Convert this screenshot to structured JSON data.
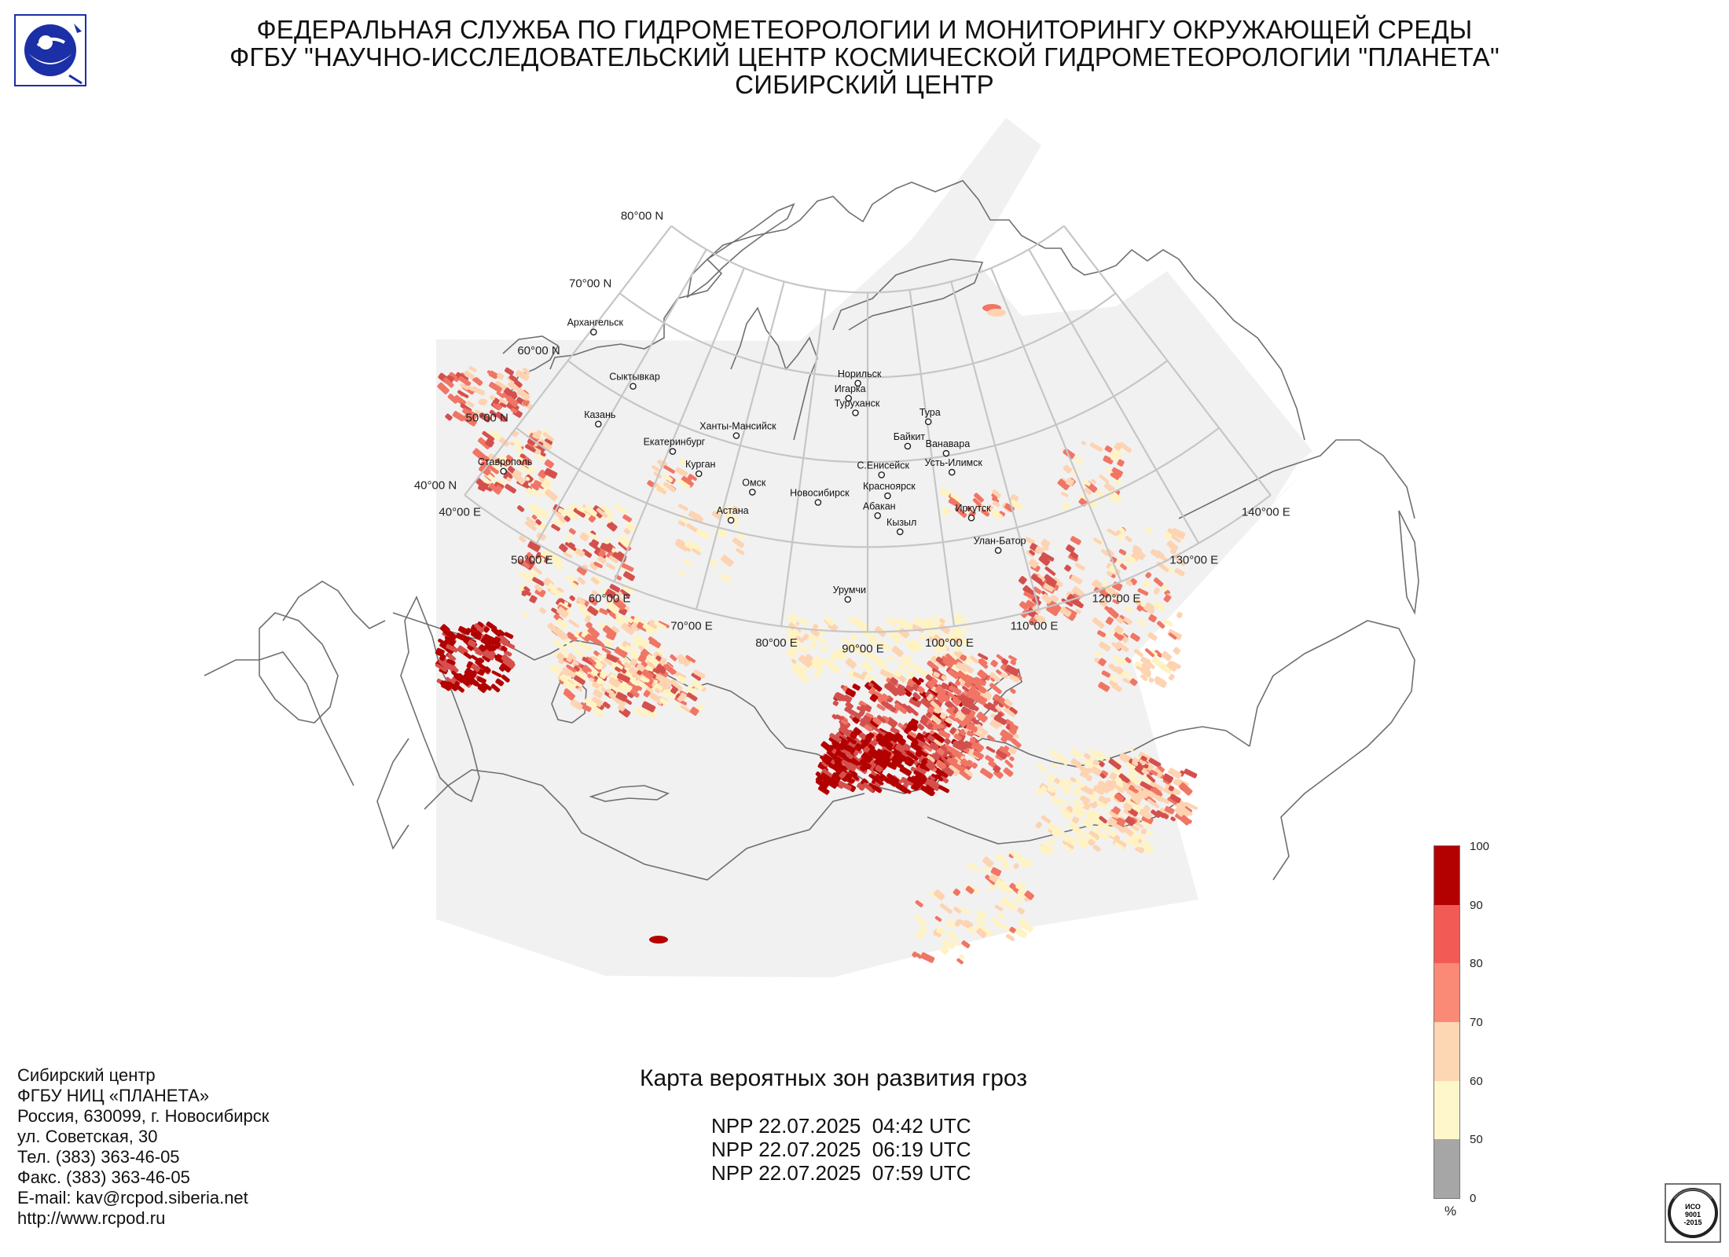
{
  "header": {
    "line1": "ФЕДЕРАЛЬНАЯ СЛУЖБА ПО ГИДРОМЕТЕОРОЛОГИИ И МОНИТОРИНГУ ОКРУЖАЮЩЕЙ СРЕДЫ",
    "line2": "ФГБУ \"НАУЧНО-ИССЛЕДОВАТЕЛЬСКИЙ ЦЕНТР КОСМИЧЕСКОЙ ГИДРОМЕТЕОРОЛОГИИ \"ПЛАНЕТА\"",
    "line3": "СИБИРСКИЙ ЦЕНТР"
  },
  "map": {
    "latitude_labels": [
      "80°00 N",
      "70°00 N",
      "60°00 N",
      "50°00 N",
      "40°00 N"
    ],
    "longitude_labels": [
      "40°00 E",
      "50°00 E",
      "60°00 E",
      "70°00 E",
      "80°00 E",
      "90°00 E",
      "100°00 E",
      "110°00 E",
      "120°00 E",
      "130°00 E",
      "140°00 E"
    ],
    "cities": [
      {
        "name": "Архангельск",
        "lon": 40.5,
        "lat": 64.5
      },
      {
        "name": "Сыктывкар",
        "lon": 50.8,
        "lat": 61.7
      },
      {
        "name": "Казань",
        "lon": 49.1,
        "lat": 55.8
      },
      {
        "name": "Екатеринбург",
        "lon": 60.6,
        "lat": 56.8
      },
      {
        "name": "Курган",
        "lon": 65.3,
        "lat": 55.4
      },
      {
        "name": "Ставрополь",
        "lon": 42.0,
        "lat": 45.0
      },
      {
        "name": "Ханты-Мансийск",
        "lon": 69.0,
        "lat": 61.0
      },
      {
        "name": "Омск",
        "lon": 73.4,
        "lat": 55.0
      },
      {
        "name": "Астана",
        "lon": 71.4,
        "lat": 51.2
      },
      {
        "name": "Новосибирск",
        "lon": 82.9,
        "lat": 55.0
      },
      {
        "name": "Норильск",
        "lon": 88.2,
        "lat": 69.3
      },
      {
        "name": "Игарка",
        "lon": 86.6,
        "lat": 67.5
      },
      {
        "name": "Туруханск",
        "lon": 87.9,
        "lat": 65.8
      },
      {
        "name": "Тура",
        "lon": 100.2,
        "lat": 64.3
      },
      {
        "name": "Байкит",
        "lon": 96.4,
        "lat": 61.7
      },
      {
        "name": "С.Енисейск",
        "lon": 92.1,
        "lat": 58.5
      },
      {
        "name": "Ванавара",
        "lon": 102.3,
        "lat": 60.3
      },
      {
        "name": "Усть-Илимск",
        "lon": 102.7,
        "lat": 58.0
      },
      {
        "name": "Красноярск",
        "lon": 92.9,
        "lat": 56.0
      },
      {
        "name": "Абакан",
        "lon": 91.4,
        "lat": 53.7
      },
      {
        "name": "Иркутск",
        "lon": 104.3,
        "lat": 52.3
      },
      {
        "name": "Кызыл",
        "lon": 94.4,
        "lat": 51.7
      },
      {
        "name": "Улан-Батор",
        "lon": 106.9,
        "lat": 47.9
      },
      {
        "name": "Урумчи",
        "lon": 87.6,
        "lat": 43.8
      }
    ]
  },
  "contacts": [
    "Сибирский центр",
    "ФГБУ НИЦ «ПЛАНЕТА»",
    "Россия, 630099, г. Новосибирск",
    "ул. Советская, 30",
    "Тел. (383) 363-46-05",
    "Факс. (383) 363-46-05",
    "E-mail: kav@rcpod.siberia.net",
    "http://www.rcpod.ru"
  ],
  "map_title": "Карта вероятных зон развития гроз",
  "passes": [
    "NPP 22.07.2025  04:42 UTC",
    "NPP 22.07.2025  06:19 UTC",
    "NPP 22.07.2025  07:59 UTC"
  ],
  "legend": {
    "unit": "%",
    "ticks": [
      "100",
      "90",
      "80",
      "70",
      "60",
      "50",
      "0"
    ],
    "bands": [
      {
        "from": 90,
        "to": 100,
        "color": "#b30000"
      },
      {
        "from": 80,
        "to": 90,
        "color": "#f25a55"
      },
      {
        "from": 70,
        "to": 80,
        "color": "#fa8a76"
      },
      {
        "from": 60,
        "to": 70,
        "color": "#fdd6b4"
      },
      {
        "from": 50,
        "to": 60,
        "color": "#fff7cc"
      },
      {
        "from": 0,
        "to": 50,
        "color": "#a6a6a6"
      }
    ]
  },
  "iso_badge": {
    "line1": "ИСО",
    "line2": "9001",
    "line3": "-2015"
  }
}
